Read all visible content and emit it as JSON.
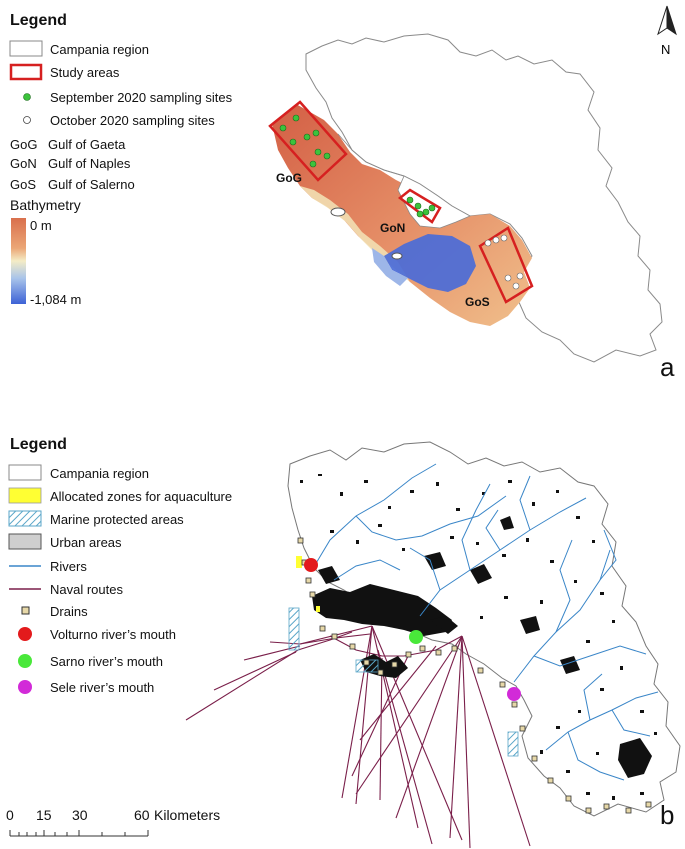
{
  "panel_a": {
    "legend": {
      "title": "Legend",
      "items": [
        {
          "label": "Campania region",
          "symbol": "region-box"
        },
        {
          "label": "Study areas",
          "symbol": "study-area-box"
        },
        {
          "label": "September 2020 sampling sites",
          "symbol": "green-dot"
        },
        {
          "label": "October 2020 sampling sites",
          "symbol": "white-dot"
        }
      ],
      "abbreviations": [
        {
          "code": "GoG",
          "name": "Gulf of Gaeta"
        },
        {
          "code": "GoN",
          "name": "Gulf of Naples"
        },
        {
          "code": "GoS",
          "name": "Gulf of Salerno"
        }
      ],
      "bathymetry": {
        "title": "Bathymetry",
        "max_label": "0 m",
        "min_label": "-1,084 m"
      }
    },
    "map_labels": {
      "gog": "GoG",
      "gon": "GoN",
      "gos": "GoS"
    },
    "north_label": "N",
    "panel_letter": "a"
  },
  "panel_b": {
    "legend": {
      "title": "Legend",
      "items": [
        {
          "label": "Campania region",
          "symbol": "region-box"
        },
        {
          "label": "Allocated zones for aquaculture",
          "symbol": "yellow-box"
        },
        {
          "label": "Marine protected areas",
          "symbol": "hatched-box"
        },
        {
          "label": "Urban areas",
          "symbol": "grey-box"
        },
        {
          "label": "Rivers",
          "symbol": "blue-line"
        },
        {
          "label": "Naval routes",
          "symbol": "purple-line"
        },
        {
          "label": "Drains",
          "symbol": "drain-square"
        },
        {
          "label": "Volturno river’s mouth",
          "symbol": "red-dot"
        },
        {
          "label": "Sarno river’s mouth",
          "symbol": "green-dot"
        },
        {
          "label": "Sele river’s mouth",
          "symbol": "magenta-dot"
        }
      ]
    },
    "scale_bar": {
      "ticks": [
        "0",
        "15",
        "30",
        "60"
      ],
      "unit": "Kilometers"
    },
    "panel_letter": "b"
  },
  "colors": {
    "study_area": "#d62020",
    "sept_sites": "#3cc33c",
    "bathy_shallow": "#d9704d",
    "bathy_mid": "#f4ecc6",
    "bathy_deep": "#3d62d6",
    "rivers": "#3a86c8",
    "naval_routes": "#7a1f4a",
    "volturno": "#e31a1c",
    "sarno": "#49e83a",
    "sele": "#d22ad8",
    "aquaculture": "#ffff33"
  }
}
